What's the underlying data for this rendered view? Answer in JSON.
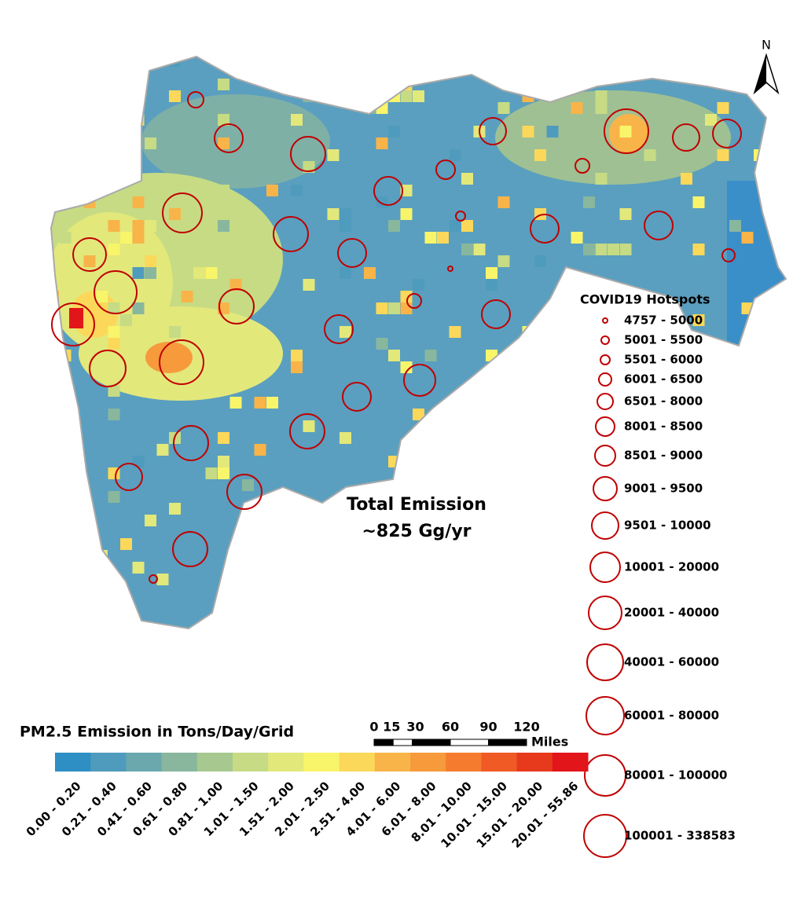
{
  "map": {
    "north_label": "N",
    "annotation": {
      "title": "Total Emission",
      "value": "~825 Gg/yr"
    },
    "hotspot_legend": {
      "title": "COVID19 Hotspots",
      "items": [
        "4757 - 5000",
        "5001 - 5500",
        "5501 - 6000",
        "6001 - 6500",
        "6501 - 8000",
        "8001 - 8500",
        "8501 - 9000",
        "9001 - 9500",
        "9501 - 10000",
        "10001 - 20000",
        "20001 - 40000",
        "40001 - 60000",
        "60001 - 80000",
        "80001 - 100000",
        "100001 - 338583"
      ]
    },
    "emission_legend": {
      "title": "PM2.5 Emission in Tons/Day/Grid",
      "classes": [
        "0.00 - 0.20",
        "0.21 - 0.40",
        "0.41 - 0.60",
        "0.61 - 0.80",
        "0.81 - 1.00",
        "1.01 - 1.50",
        "1.51 - 2.00",
        "2.01 - 2.50",
        "2.51 - 4.00",
        "4.01 - 6.00",
        "6.01 - 8.00",
        "8.01 - 10.00",
        "10.01 - 15.00",
        "15.01 - 20.00",
        "20.01 - 55.86"
      ],
      "colors": [
        "#2e8fc4",
        "#4f9bbd",
        "#6aa8ad",
        "#88b79e",
        "#a7c98f",
        "#c6db84",
        "#e3e87b",
        "#f8f56b",
        "#fbd85a",
        "#f8b449",
        "#f69a3c",
        "#f57c2e",
        "#f05a25",
        "#e73a1d",
        "#e2151a"
      ]
    },
    "scale_bar": {
      "ticks": [
        0,
        15,
        30,
        60,
        90,
        120
      ],
      "unit": "Miles"
    }
  }
}
